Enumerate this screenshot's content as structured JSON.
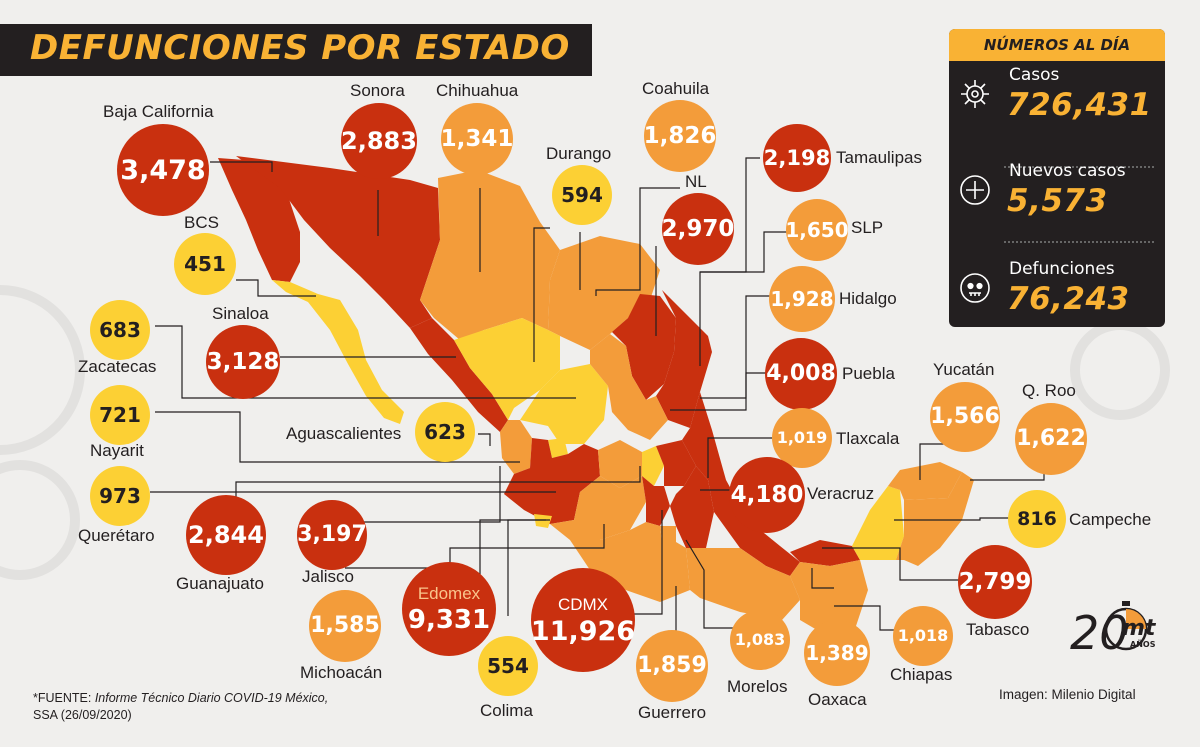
{
  "title": "DEFUNCIONES POR ESTADO",
  "panel": {
    "header": "NÚMEROS AL DÍA",
    "stats": [
      {
        "label": "Casos",
        "value": "726,431",
        "icon": "virus-icon"
      },
      {
        "label": "Nuevos casos",
        "value": "5,573",
        "icon": "plus-circle-icon"
      },
      {
        "label": "Defunciones",
        "value": "76,243",
        "icon": "skull-icon"
      }
    ]
  },
  "states": {
    "baja_california": {
      "name": "Baja California",
      "value": "3,478"
    },
    "sonora": {
      "name": "Sonora",
      "value": "2,883"
    },
    "chihuahua": {
      "name": "Chihuahua",
      "value": "1,341"
    },
    "coahuila": {
      "name": "Coahuila",
      "value": "1,826"
    },
    "durango": {
      "name": "Durango",
      "value": "594"
    },
    "nl": {
      "name": "NL",
      "value": "2,970"
    },
    "tamaulipas": {
      "name": "Tamaulipas",
      "value": "2,198"
    },
    "slp": {
      "name": "SLP",
      "value": "1,650"
    },
    "hidalgo": {
      "name": "Hidalgo",
      "value": "1,928"
    },
    "puebla": {
      "name": "Puebla",
      "value": "4,008"
    },
    "tlaxcala": {
      "name": "Tlaxcala",
      "value": "1,019"
    },
    "veracruz": {
      "name": "Veracruz",
      "value": "4,180"
    },
    "yucatan": {
      "name": "Yucatán",
      "value": "1,566"
    },
    "qroo": {
      "name": "Q. Roo",
      "value": "1,622"
    },
    "campeche": {
      "name": "Campeche",
      "value": "816"
    },
    "tabasco": {
      "name": "Tabasco",
      "value": "2,799"
    },
    "chiapas": {
      "name": "Chiapas",
      "value": "1,018"
    },
    "oaxaca": {
      "name": "Oaxaca",
      "value": "1,389"
    },
    "morelos": {
      "name": "Morelos",
      "value": "1,083"
    },
    "guerrero": {
      "name": "Guerrero",
      "value": "1,859"
    },
    "cdmx": {
      "name": "CDMX",
      "value": "11,926"
    },
    "edomex": {
      "name": "Edomex",
      "value": "9,331"
    },
    "colima": {
      "name": "Colima",
      "value": "554"
    },
    "michoacan": {
      "name": "Michoacán",
      "value": "1,585"
    },
    "jalisco": {
      "name": "Jalisco",
      "value": "3,197"
    },
    "guanajuato": {
      "name": "Guanajuato",
      "value": "2,844"
    },
    "queretaro": {
      "name": "Querétaro",
      "value": "973"
    },
    "nayarit": {
      "name": "Nayarit",
      "value": "721"
    },
    "zacatecas": {
      "name": "Zacatecas",
      "value": "683"
    },
    "sinaloa": {
      "name": "Sinaloa",
      "value": "3,128"
    },
    "bcs": {
      "name": "BCS",
      "value": "451"
    },
    "aguascalientes": {
      "name": "Aguascalientes",
      "value": "623"
    }
  },
  "source": {
    "prefix": "*FUENTE: ",
    "doc": "Informe Técnico Diario COVID-19 México,",
    "line2": "SSA (26/09/2020)"
  },
  "credit": "Imagen: Milenio Digital",
  "logo": {
    "number": "20",
    "brand": "mt",
    "sub": "AÑOS"
  },
  "colors": {
    "red": "#c9300f",
    "orange": "#f39c3a",
    "yellow": "#fcd034",
    "dark": "#231f20",
    "accent": "#f9b234",
    "background": "#f0efed"
  }
}
